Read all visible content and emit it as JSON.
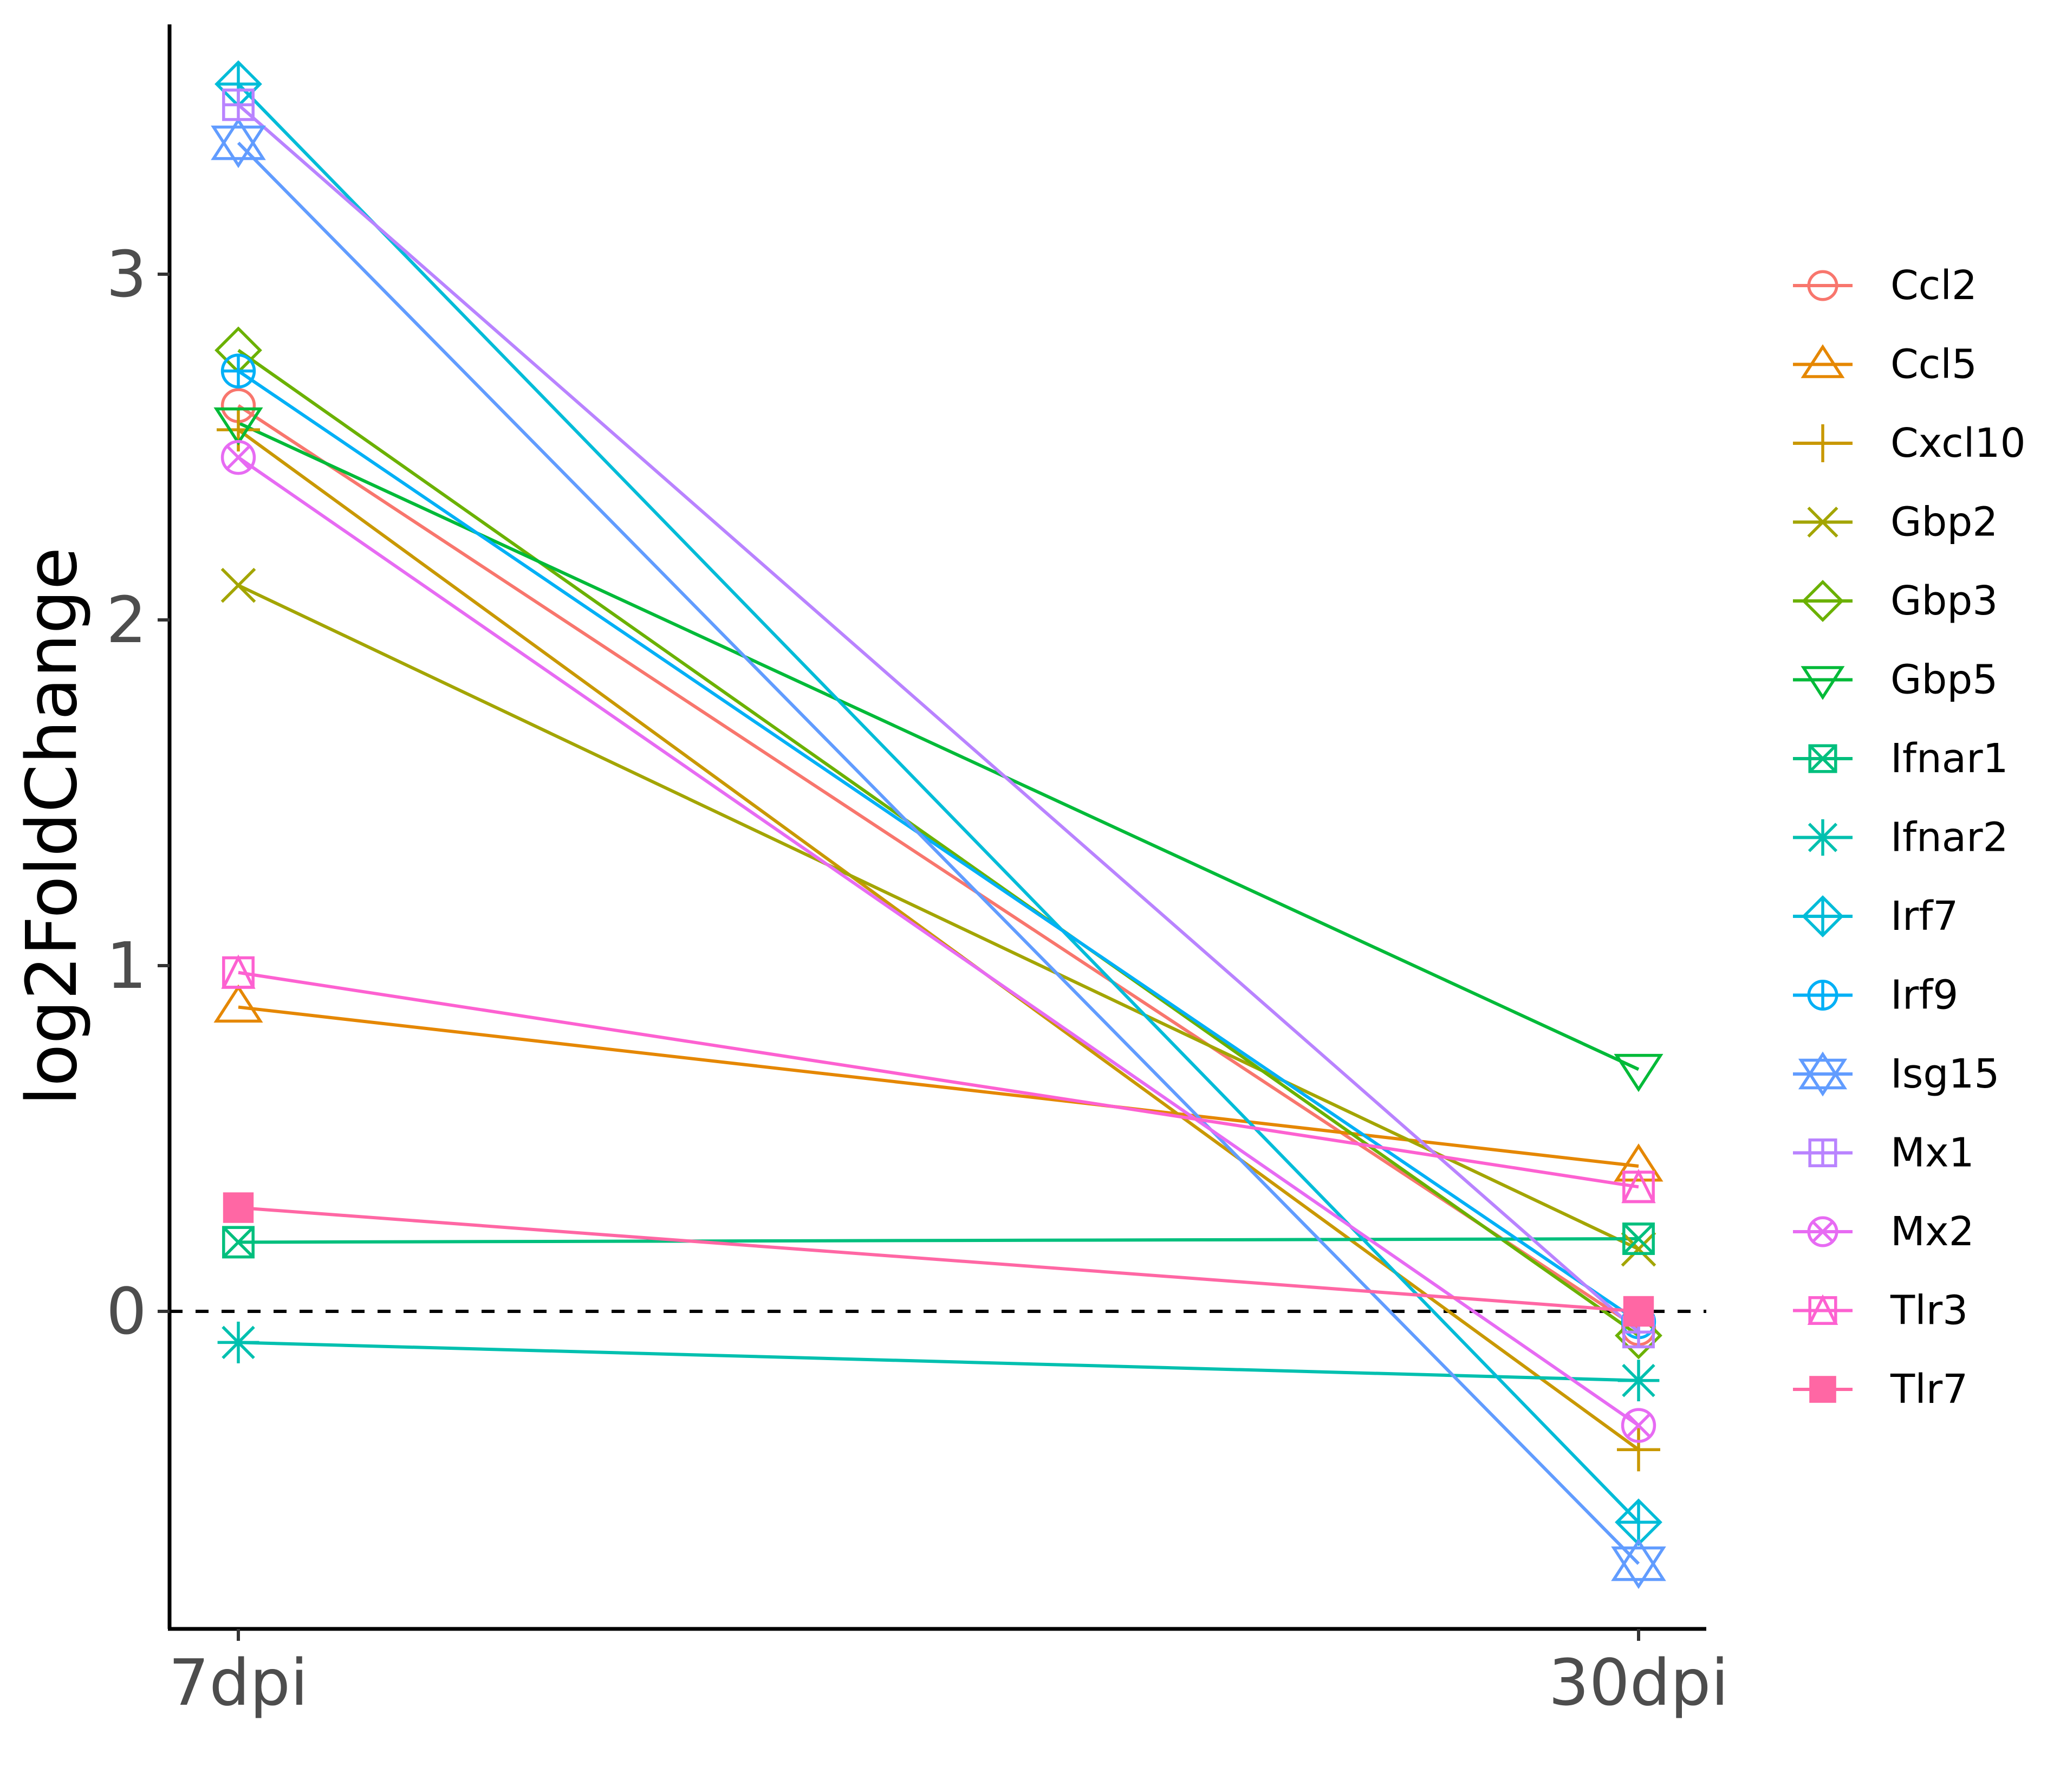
{
  "chart_data": {
    "type": "line",
    "title": "",
    "xlabel": "",
    "ylabel": "log2FoldChange",
    "categories": [
      "7dpi",
      "30dpi"
    ],
    "ylim": [
      -0.93,
      3.74
    ],
    "yticks": [
      0,
      1,
      2,
      3
    ],
    "reference_line": {
      "y": 0,
      "style": "dashed"
    },
    "grid": false,
    "legend_position": "right",
    "series": [
      {
        "name": "Ccl2",
        "color": "#F8766D",
        "shape": "circle-open",
        "values": [
          2.62,
          -0.05
        ]
      },
      {
        "name": "Ccl5",
        "color": "#E58700",
        "shape": "triangle-up-open",
        "values": [
          0.88,
          0.42
        ]
      },
      {
        "name": "Cxcl10",
        "color": "#C99800",
        "shape": "plus",
        "values": [
          2.55,
          -0.4
        ]
      },
      {
        "name": "Gbp2",
        "color": "#A3A500",
        "shape": "cross",
        "values": [
          2.1,
          0.18
        ]
      },
      {
        "name": "Gbp3",
        "color": "#6BB100",
        "shape": "diamond-open",
        "values": [
          2.78,
          -0.07
        ]
      },
      {
        "name": "Gbp5",
        "color": "#00BA38",
        "shape": "triangle-down-open",
        "values": [
          2.57,
          0.7
        ]
      },
      {
        "name": "Ifnar1",
        "color": "#00BF7D",
        "shape": "square-cross",
        "values": [
          0.2,
          0.21
        ]
      },
      {
        "name": "Ifnar2",
        "color": "#00C0AF",
        "shape": "asterisk",
        "values": [
          -0.09,
          -0.2
        ]
      },
      {
        "name": "Irf7",
        "color": "#00BCD8",
        "shape": "diamond-plus",
        "values": [
          3.55,
          -0.61
        ]
      },
      {
        "name": "Irf9",
        "color": "#00B0F6",
        "shape": "circle-plus",
        "values": [
          2.72,
          -0.03
        ]
      },
      {
        "name": "Isg15",
        "color": "#619CFF",
        "shape": "hexagram",
        "values": [
          3.38,
          -0.73
        ]
      },
      {
        "name": "Mx1",
        "color": "#B983FF",
        "shape": "square-plus",
        "values": [
          3.49,
          -0.06
        ]
      },
      {
        "name": "Mx2",
        "color": "#E76BF3",
        "shape": "circle-cross",
        "values": [
          2.47,
          -0.33
        ]
      },
      {
        "name": "Tlr3",
        "color": "#FD61D1",
        "shape": "square-triangle",
        "values": [
          0.98,
          0.36
        ]
      },
      {
        "name": "Tlr7",
        "color": "#FF67A4",
        "shape": "square-filled",
        "values": [
          0.3,
          0.0
        ]
      }
    ]
  }
}
